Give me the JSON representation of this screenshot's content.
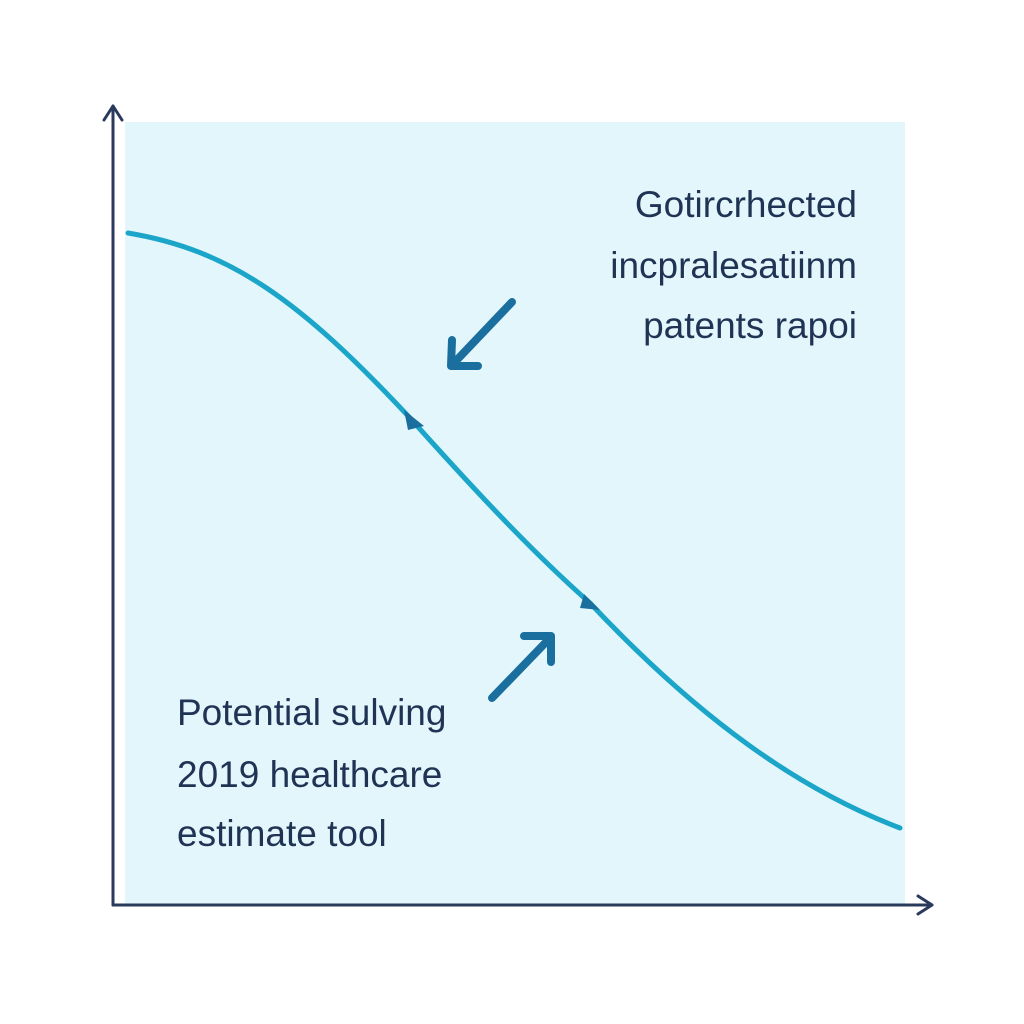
{
  "annotations": {
    "top_right": [
      "Gotircrhected",
      "incpralesatiinm",
      "patents rapoi"
    ],
    "bottom_left": [
      "Potential sulving",
      "2019 healthcare",
      "estimate tool"
    ]
  }
}
